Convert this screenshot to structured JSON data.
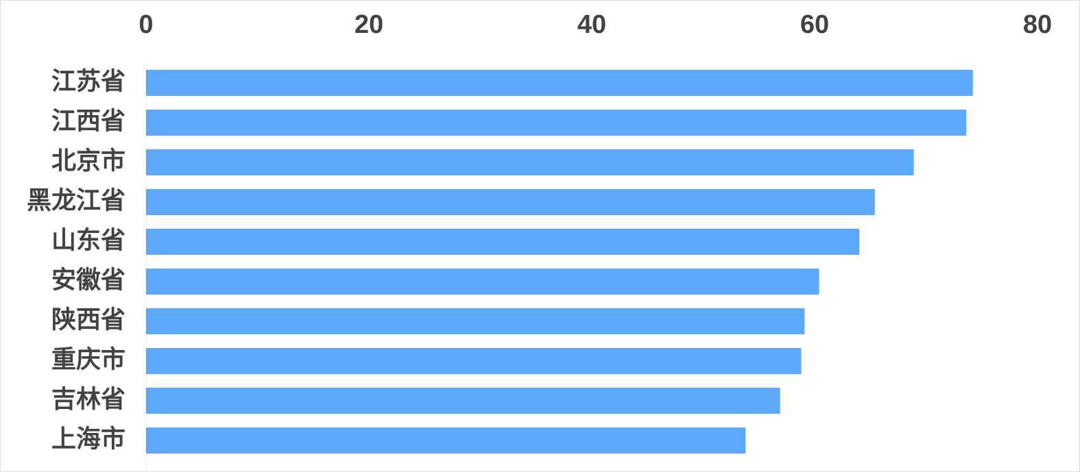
{
  "chart_data": {
    "type": "bar",
    "orientation": "horizontal",
    "categories": [
      "江苏省",
      "江西省",
      "北京市",
      "黑龙江省",
      "山东省",
      "安徽省",
      "陕西省",
      "重庆市",
      "吉林省",
      "上海市"
    ],
    "values": [
      74.2,
      73.6,
      68.9,
      65.4,
      64.0,
      60.4,
      59.1,
      58.8,
      56.9,
      53.8
    ],
    "color": "#5ba8fd",
    "xlim": [
      0,
      80
    ],
    "xticks": [
      0,
      20,
      40,
      60,
      80
    ],
    "grid": false
  }
}
